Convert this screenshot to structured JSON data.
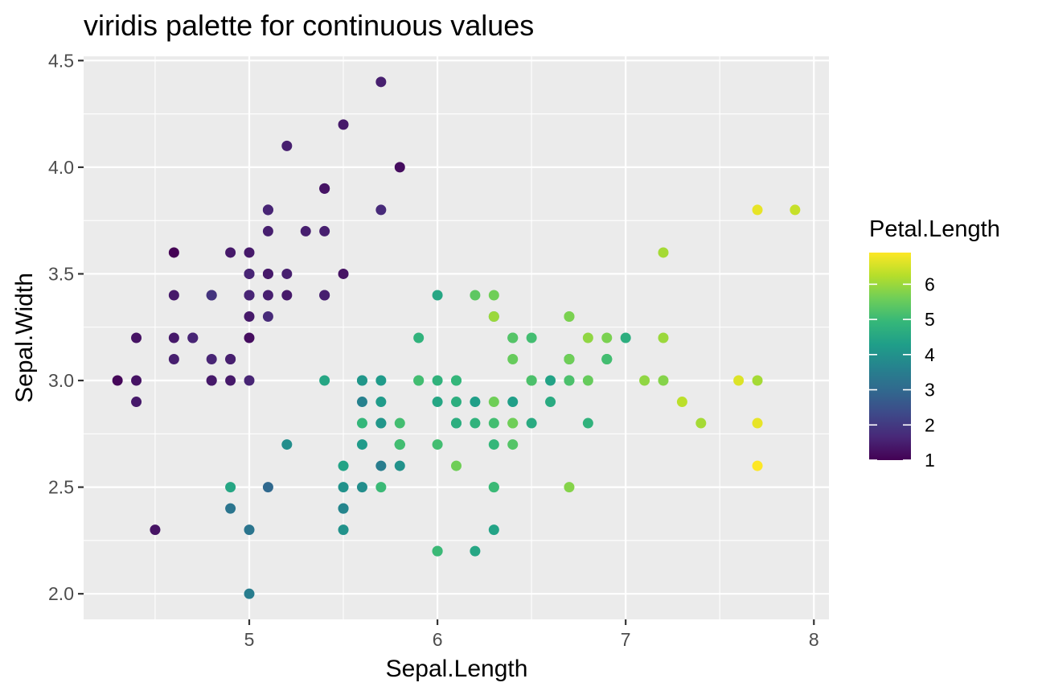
{
  "chart_data": {
    "type": "scatter",
    "title": "viridis palette for continuous values",
    "xlabel": "Sepal.Length",
    "ylabel": "Sepal.Width",
    "xlim": [
      4.12,
      8.08
    ],
    "ylim": [
      1.88,
      4.52
    ],
    "x_ticks": [
      5,
      6,
      7,
      8
    ],
    "y_ticks": [
      2.0,
      2.5,
      3.0,
      3.5,
      4.0,
      4.5
    ],
    "x_tick_labels": [
      "5",
      "6",
      "7",
      "8"
    ],
    "y_tick_labels": [
      "2.0",
      "2.5",
      "3.0",
      "3.5",
      "4.0",
      "4.5"
    ],
    "grid": true,
    "color_variable": "Petal.Length",
    "palette": "viridis",
    "palette_colors": [
      "#440154",
      "#482878",
      "#3e4989",
      "#31688e",
      "#26828e",
      "#1f9e89",
      "#35b779",
      "#6ece58",
      "#b5de2b",
      "#fde725"
    ],
    "color_range": [
      1.0,
      6.9
    ],
    "legend": {
      "title": "Petal.Length",
      "position": "right",
      "breaks": [
        1,
        2,
        3,
        4,
        5,
        6
      ],
      "labels": [
        "1",
        "2",
        "3",
        "4",
        "5",
        "6"
      ]
    },
    "x": [
      5.1,
      4.9,
      4.7,
      4.6,
      5.0,
      5.4,
      4.6,
      5.0,
      4.4,
      4.9,
      5.4,
      4.8,
      4.8,
      4.3,
      5.8,
      5.7,
      5.4,
      5.1,
      5.7,
      5.1,
      5.4,
      5.1,
      4.6,
      5.1,
      4.8,
      5.0,
      5.0,
      5.2,
      5.2,
      4.7,
      4.8,
      5.4,
      5.2,
      5.5,
      4.9,
      5.0,
      5.5,
      4.9,
      4.4,
      5.1,
      5.0,
      4.5,
      4.4,
      5.0,
      5.1,
      4.8,
      5.1,
      4.6,
      5.3,
      5.0,
      7.0,
      6.4,
      6.9,
      5.5,
      6.5,
      5.7,
      6.3,
      4.9,
      6.6,
      5.2,
      5.0,
      5.9,
      6.0,
      6.1,
      5.6,
      6.7,
      5.6,
      5.8,
      6.2,
      5.6,
      5.9,
      6.1,
      6.3,
      6.1,
      6.4,
      6.6,
      6.8,
      6.7,
      6.0,
      5.7,
      5.5,
      5.5,
      5.8,
      6.0,
      5.4,
      6.0,
      6.7,
      6.3,
      5.6,
      5.5,
      5.5,
      6.1,
      5.8,
      5.0,
      5.6,
      5.7,
      5.7,
      6.2,
      5.1,
      5.7,
      6.3,
      5.8,
      7.1,
      6.3,
      6.5,
      7.6,
      4.9,
      7.3,
      6.7,
      7.2,
      6.5,
      6.4,
      6.8,
      5.7,
      5.8,
      6.4,
      6.5,
      7.7,
      7.7,
      6.0,
      6.9,
      5.6,
      7.7,
      6.3,
      6.7,
      7.2,
      6.2,
      6.1,
      6.4,
      7.2,
      7.4,
      7.9,
      6.4,
      6.3,
      6.1,
      7.7,
      6.3,
      6.4,
      6.0,
      6.9,
      6.7,
      6.9,
      5.8,
      6.8,
      6.7,
      6.7,
      6.3,
      6.5,
      6.2,
      5.9
    ],
    "y": [
      3.5,
      3.0,
      3.2,
      3.1,
      3.6,
      3.9,
      3.4,
      3.4,
      2.9,
      3.1,
      3.7,
      3.4,
      3.0,
      3.0,
      4.0,
      4.4,
      3.9,
      3.5,
      3.8,
      3.8,
      3.4,
      3.7,
      3.6,
      3.3,
      3.4,
      3.0,
      3.4,
      3.5,
      3.4,
      3.2,
      3.1,
      3.4,
      4.1,
      4.2,
      3.1,
      3.2,
      3.5,
      3.6,
      3.0,
      3.4,
      3.5,
      2.3,
      3.2,
      3.5,
      3.8,
      3.0,
      3.8,
      3.2,
      3.7,
      3.3,
      3.2,
      3.2,
      3.1,
      2.3,
      2.8,
      2.8,
      3.3,
      2.4,
      2.9,
      2.7,
      2.0,
      3.0,
      2.2,
      2.9,
      2.9,
      3.1,
      3.0,
      2.7,
      2.2,
      2.5,
      3.2,
      2.8,
      2.5,
      2.8,
      2.9,
      3.0,
      2.8,
      3.0,
      2.9,
      2.6,
      2.4,
      2.4,
      2.7,
      2.7,
      3.0,
      3.4,
      3.1,
      2.3,
      3.0,
      2.5,
      2.6,
      3.0,
      2.6,
      2.3,
      2.7,
      3.0,
      2.9,
      2.9,
      2.5,
      2.8,
      3.3,
      2.7,
      3.0,
      2.9,
      3.0,
      3.0,
      2.5,
      2.9,
      2.5,
      3.6,
      3.2,
      2.7,
      3.0,
      2.5,
      2.8,
      3.2,
      3.0,
      3.8,
      2.6,
      2.2,
      3.2,
      2.8,
      2.8,
      2.7,
      3.3,
      3.2,
      2.8,
      3.0,
      2.8,
      3.0,
      2.8,
      3.8,
      2.8,
      2.8,
      2.6,
      3.0,
      3.4,
      3.1,
      3.0,
      3.1,
      3.1,
      3.1,
      2.7,
      3.2,
      3.3,
      3.0,
      2.5,
      3.0,
      3.4,
      3.0
    ],
    "color_values": [
      1.4,
      1.4,
      1.3,
      1.5,
      1.4,
      1.7,
      1.4,
      1.5,
      1.4,
      1.5,
      1.5,
      1.6,
      1.4,
      1.1,
      1.2,
      1.5,
      1.3,
      1.4,
      1.7,
      1.5,
      1.7,
      1.5,
      1.0,
      1.7,
      1.9,
      1.6,
      1.6,
      1.5,
      1.4,
      1.6,
      1.6,
      1.5,
      1.5,
      1.4,
      1.5,
      1.2,
      1.3,
      1.4,
      1.3,
      1.5,
      1.3,
      1.3,
      1.3,
      1.6,
      1.9,
      1.4,
      1.6,
      1.4,
      1.5,
      1.4,
      4.7,
      4.5,
      4.9,
      4.0,
      4.6,
      4.5,
      4.7,
      3.3,
      4.6,
      3.9,
      3.5,
      4.2,
      4.0,
      4.7,
      3.6,
      4.4,
      4.5,
      4.1,
      4.5,
      3.9,
      4.8,
      4.0,
      4.9,
      4.7,
      4.3,
      4.4,
      4.8,
      5.0,
      4.5,
      3.5,
      3.8,
      3.7,
      3.9,
      5.1,
      4.5,
      4.5,
      4.7,
      4.4,
      4.1,
      4.0,
      4.4,
      4.6,
      4.0,
      3.3,
      4.2,
      4.2,
      4.2,
      4.3,
      3.0,
      4.1,
      6.0,
      5.1,
      5.9,
      5.6,
      5.8,
      6.6,
      4.5,
      6.3,
      5.8,
      6.1,
      5.1,
      5.3,
      5.5,
      5.0,
      5.1,
      5.3,
      5.5,
      6.7,
      6.9,
      5.0,
      5.7,
      4.9,
      6.7,
      4.9,
      5.7,
      6.0,
      4.8,
      4.9,
      5.6,
      5.8,
      6.1,
      6.4,
      5.6,
      5.1,
      5.6,
      6.1,
      5.6,
      5.5,
      4.8,
      5.4,
      5.6,
      5.1,
      5.1,
      5.9,
      5.7,
      5.2,
      5.0,
      5.2,
      5.4,
      5.1
    ]
  }
}
